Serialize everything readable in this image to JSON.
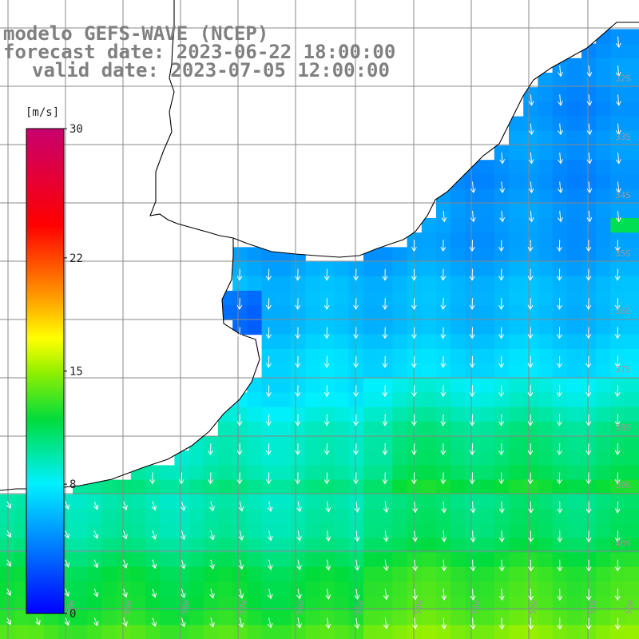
{
  "title": {
    "line1": "modelo GEFS-WAVE (NCEP)",
    "line2": "forecast date: 2023-06-22 18:00:00",
    "line3": "valid date: 2023-07-05 12:00:00"
  },
  "colorbar": {
    "unit": "[m/s]",
    "ticks": [
      "30",
      "22",
      "15",
      "8",
      "0"
    ],
    "tick_values": [
      30,
      22,
      15,
      8,
      0
    ],
    "min": 0,
    "max": 30,
    "colors": [
      "#0000ff",
      "#0096ff",
      "#00f0ff",
      "#00e040",
      "#c8ff00",
      "#ffff00",
      "#ff8000",
      "#ff0000",
      "#c8006e"
    ]
  },
  "lat_labels": [
    "32S",
    "33S",
    "34S",
    "35S",
    "36S",
    "37S",
    "38S",
    "39S",
    "40S"
  ],
  "lon_labels": [
    "60W",
    "59W",
    "58W",
    "57W",
    "56W",
    "55W",
    "54W",
    "53W",
    "52W",
    "51W",
    "50W"
  ],
  "field": {
    "variable": "wind speed",
    "description_speed_range": [
      5,
      14
    ],
    "prevailing_direction": "toward SSE / S"
  }
}
